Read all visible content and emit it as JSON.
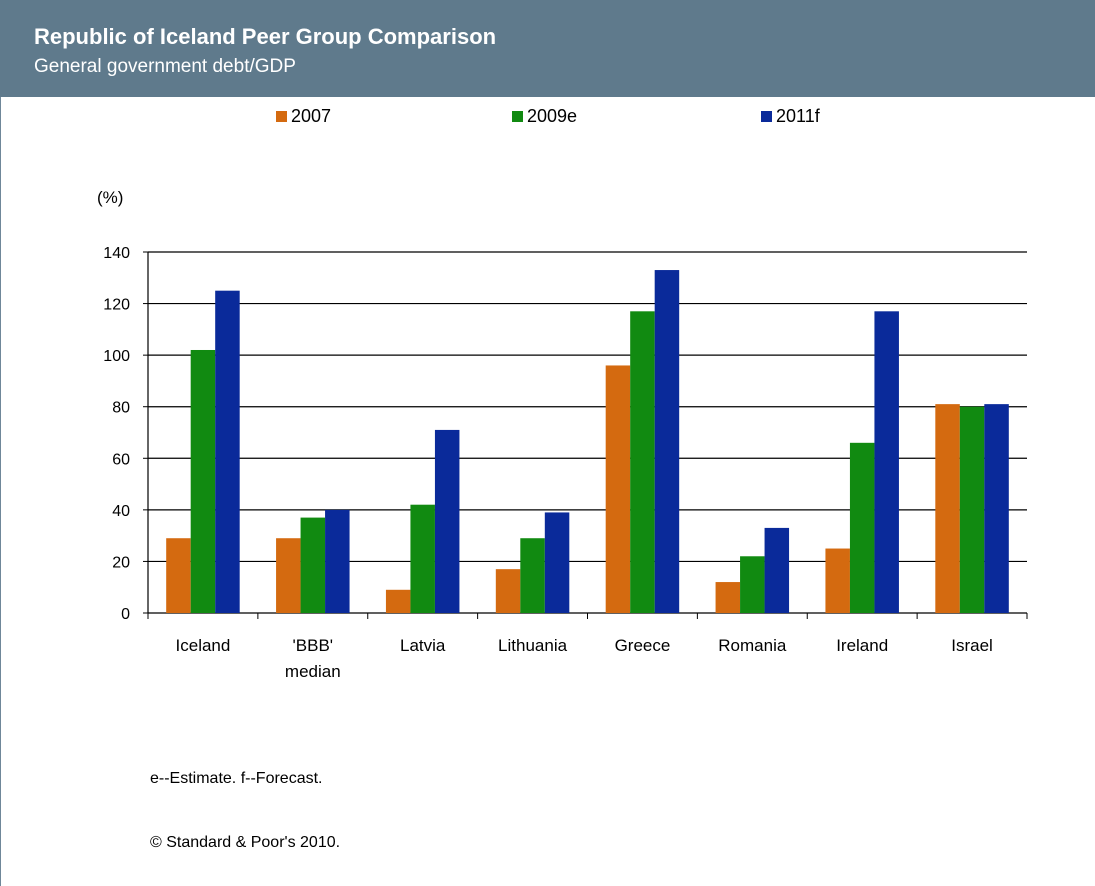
{
  "header": {
    "title": "Republic of Iceland Peer Group Comparison",
    "subtitle": "General government debt/GDP"
  },
  "notes": {
    "estimate": "e--Estimate. f--Forecast.",
    "copyright": "© Standard & Poor's 2010."
  },
  "colors": {
    "header_bg": "#5f7a8c",
    "s2007": "#d46a10",
    "s2009": "#118a11",
    "s2011": "#0a2a9a"
  },
  "chart_data": {
    "type": "bar",
    "title": "Republic of Iceland Peer Group Comparison",
    "subtitle": "General government debt/GDP",
    "unit_label": "(%)",
    "categories": [
      "Iceland",
      "'BBB' median",
      "Latvia",
      "Lithuania",
      "Greece",
      "Romania",
      "Ireland",
      "Israel"
    ],
    "category_lines": [
      [
        "Iceland"
      ],
      [
        "'BBB'",
        "median"
      ],
      [
        "Latvia"
      ],
      [
        "Lithuania"
      ],
      [
        "Greece"
      ],
      [
        "Romania"
      ],
      [
        "Ireland"
      ],
      [
        "Israel"
      ]
    ],
    "series": [
      {
        "name": "2007",
        "color": "#d46a10",
        "values": [
          29,
          29,
          9,
          17,
          96,
          12,
          25,
          81
        ]
      },
      {
        "name": "2009e",
        "color": "#118a11",
        "values": [
          102,
          37,
          42,
          29,
          117,
          22,
          66,
          80
        ]
      },
      {
        "name": "2011f",
        "color": "#0a2a9a",
        "values": [
          125,
          40,
          71,
          39,
          133,
          33,
          117,
          81
        ]
      }
    ],
    "yticks": [
      0,
      20,
      40,
      60,
      80,
      100,
      120,
      140
    ],
    "ylim": [
      0,
      140
    ],
    "grid": true,
    "legend_position": "top"
  }
}
